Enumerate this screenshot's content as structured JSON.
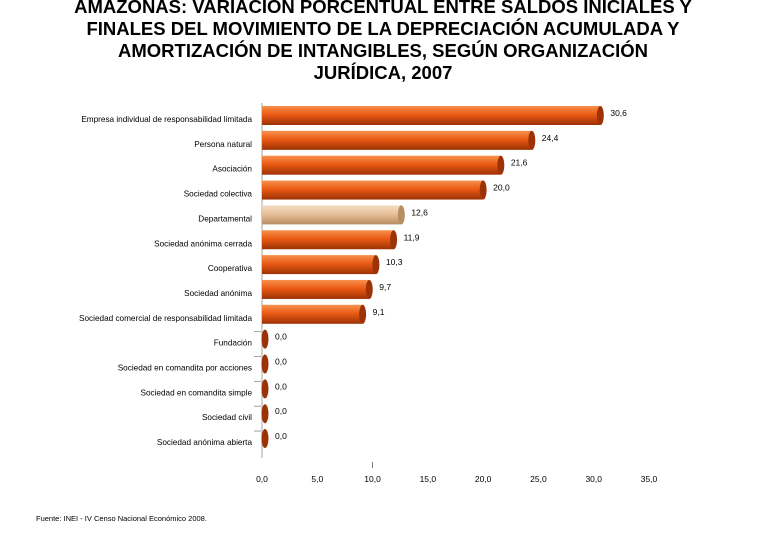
{
  "title_lines": [
    "AMAZONAS: VARIACIÓN PORCENTUAL ENTRE SALDOS INICIALES Y",
    "FINALES DEL MOVIMIENTO DE LA DEPRECIACIÓN ACUMULADA Y",
    "AMORTIZACIÓN DE INTANGIBLES, SEGÚN ORGANIZACIÓN",
    "JURÍDICA, 2007"
  ],
  "source": "Fuente: INEI - IV Censo Nacional Económico 2008.",
  "chart_data": {
    "type": "bar",
    "orientation": "horizontal",
    "title": "AMAZONAS: VARIACIÓN PORCENTUAL ENTRE SALDOS INICIALES Y FINALES DEL MOVIMIENTO DE LA DEPRECIACIÓN ACUMULADA Y AMORTIZACIÓN DE INTANGIBLES, SEGÚN ORGANIZACIÓN JURÍDICA, 2007",
    "xlabel": "",
    "ylabel": "",
    "xlim": [
      0,
      35
    ],
    "xticks": [
      "0,0",
      "5,0",
      "10,0",
      "15,0",
      "20,0",
      "25,0",
      "30,0",
      "35,0"
    ],
    "xtick_values": [
      0,
      5,
      10,
      15,
      20,
      25,
      30,
      35
    ],
    "grid": false,
    "legend": "none",
    "categories": [
      "Empresa individual de responsabilidad limitada",
      "Persona natural",
      "Asociación",
      "Sociedad colectiva",
      "Departamental",
      "Sociedad anónima cerrada",
      "Cooperativa",
      "Sociedad anónima",
      "Sociedad comercial de responsabilidad limitada",
      "Fundación",
      "Sociedad en comandita por acciones",
      "Sociedad en comandita simple",
      "Sociedad civil",
      "Sociedad anónima abierta"
    ],
    "values": [
      30.6,
      24.4,
      21.6,
      20.0,
      12.6,
      11.9,
      10.3,
      9.7,
      9.1,
      0.0,
      0.0,
      0.0,
      0.0,
      0.0
    ],
    "value_labels": [
      "30,6",
      "24,4",
      "21,6",
      "20,0",
      "12,6",
      "11,9",
      "10,3",
      "9,7",
      "9,1",
      "0,0",
      "0,0",
      "0,0",
      "0,0",
      "0,0"
    ],
    "highlight_index": 4,
    "colors": {
      "bar": "#ea5a14",
      "bar_light": "#f7914d",
      "bar_dark": "#9c3205",
      "highlight": "#e6c09b",
      "highlight_light": "#f5dcc3",
      "highlight_dark": "#b98d62",
      "axis": "#8c8c8c"
    }
  }
}
